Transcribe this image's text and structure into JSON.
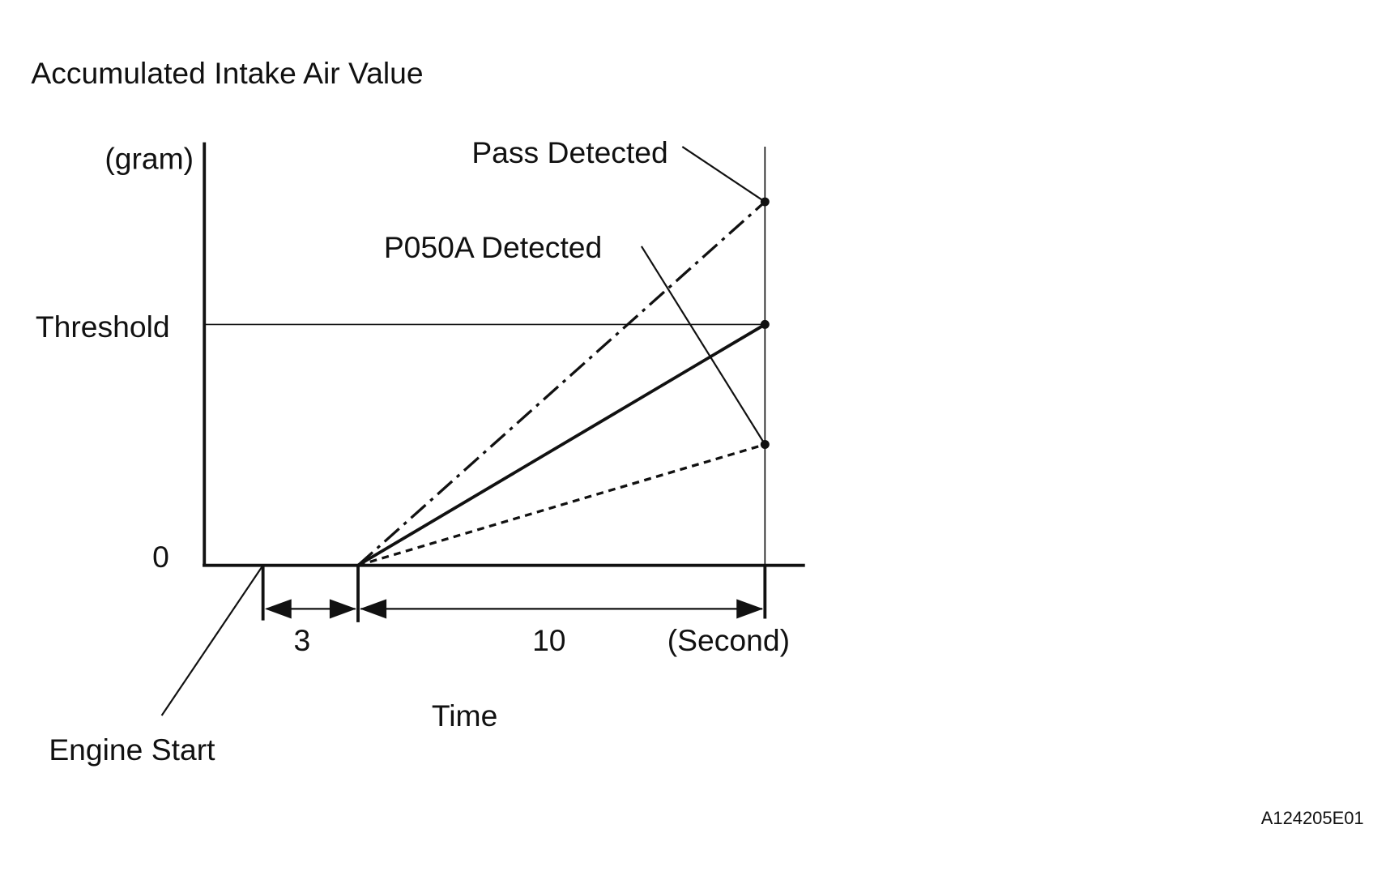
{
  "title": "Accumulated Intake Air Value",
  "y_axis": {
    "unit": "(gram)",
    "threshold": "Threshold",
    "zero": "0"
  },
  "annotations": {
    "pass": "Pass Detected",
    "fail": "P050A Detected",
    "engine_start": "Engine Start"
  },
  "x_axis": {
    "interval_1": "3",
    "interval_2": "10",
    "unit": "(Second)",
    "label": "Time"
  },
  "code": "A124205E01"
}
